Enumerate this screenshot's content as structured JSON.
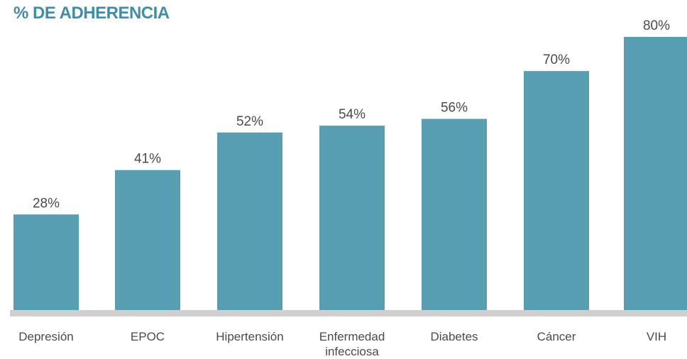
{
  "chart_data": {
    "type": "bar",
    "title": "% DE ADHERENCIA",
    "categories": [
      "Depresión",
      "EPOC",
      "Hipertensión",
      "Enfermedad infecciosa",
      "Diabetes",
      "Cáncer",
      "VIH"
    ],
    "values": [
      28,
      41,
      52,
      54,
      56,
      70,
      80
    ],
    "value_labels": [
      "28%",
      "41%",
      "52%",
      "54%",
      "56%",
      "70%",
      "80%"
    ],
    "xlabel": "",
    "ylabel": "",
    "ylim": [
      0,
      80
    ],
    "grid": false,
    "legend": "none",
    "colors": {
      "bar": "#579eb3",
      "title": "#3f8ea6",
      "baseline": "#cfcfcf",
      "text": "#4a4a4a"
    }
  }
}
